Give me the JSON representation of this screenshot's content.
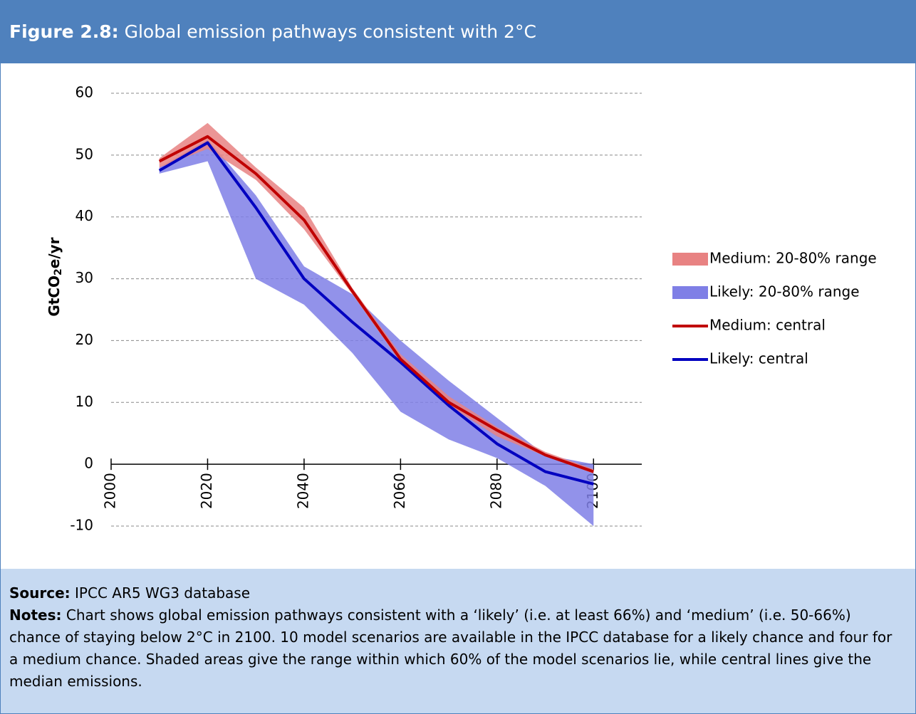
{
  "chart_data": {
    "type": "line",
    "title_label": "Figure 2.8:",
    "title": "Global emission pathways consistent with 2°C",
    "y_label": [
      "GtCO",
      "2",
      "e/yr"
    ],
    "x": [
      2010,
      2020,
      2030,
      2040,
      2050,
      2060,
      2070,
      2080,
      2090,
      2100
    ],
    "xlim": [
      2000,
      2110
    ],
    "xticks": [
      2000,
      2020,
      2040,
      2060,
      2080,
      2100
    ],
    "ylim": [
      -10,
      60
    ],
    "yticks": [
      -10,
      0,
      10,
      20,
      30,
      40,
      50,
      60
    ],
    "grid": true,
    "legend": "right",
    "bands": [
      {
        "name": "Likely: 20-80% range",
        "color": "#7f7fe6",
        "low": [
          47,
          49,
          30,
          25.8,
          18,
          8.5,
          4,
          1,
          -3.5,
          -10
        ],
        "high": [
          48,
          52.5,
          43.5,
          32,
          27.5,
          20,
          13.5,
          7.5,
          1.5,
          0
        ]
      },
      {
        "name": "Medium: 20-80% range",
        "color": "#e88282",
        "low": [
          48,
          51,
          46,
          38,
          27.5,
          16.5,
          9.5,
          4.5,
          1.3,
          -1.5
        ],
        "high": [
          49.5,
          55.2,
          48,
          41.5,
          28.5,
          17.8,
          11,
          6,
          2,
          -0.8
        ]
      }
    ],
    "series": [
      {
        "name": "Likely: central",
        "color": "#0000c0",
        "values": [
          47.5,
          52,
          41.5,
          30,
          23,
          16.5,
          9.5,
          3.3,
          -1.2,
          -3.2
        ]
      },
      {
        "name": "Medium: central",
        "color": "#c00000",
        "values": [
          49,
          53,
          47,
          39.5,
          28,
          17,
          10,
          5.5,
          1.5,
          -1.2
        ]
      }
    ]
  },
  "footer": {
    "source_label": "Source:",
    "source": "IPCC AR5 WG3 database",
    "notes_label": "Notes:",
    "notes": "Chart shows global emission pathways consistent with a ‘likely’ (i.e. at least 66%) and ‘medium’ (i.e. 50-66%) chance of staying below 2°C in 2100. 10 model scenarios are available in the IPCC database for a likely chance and four for a medium chance. Shaded areas give the range within which 60% of the model scenarios lie, while central lines give the median emissions."
  }
}
